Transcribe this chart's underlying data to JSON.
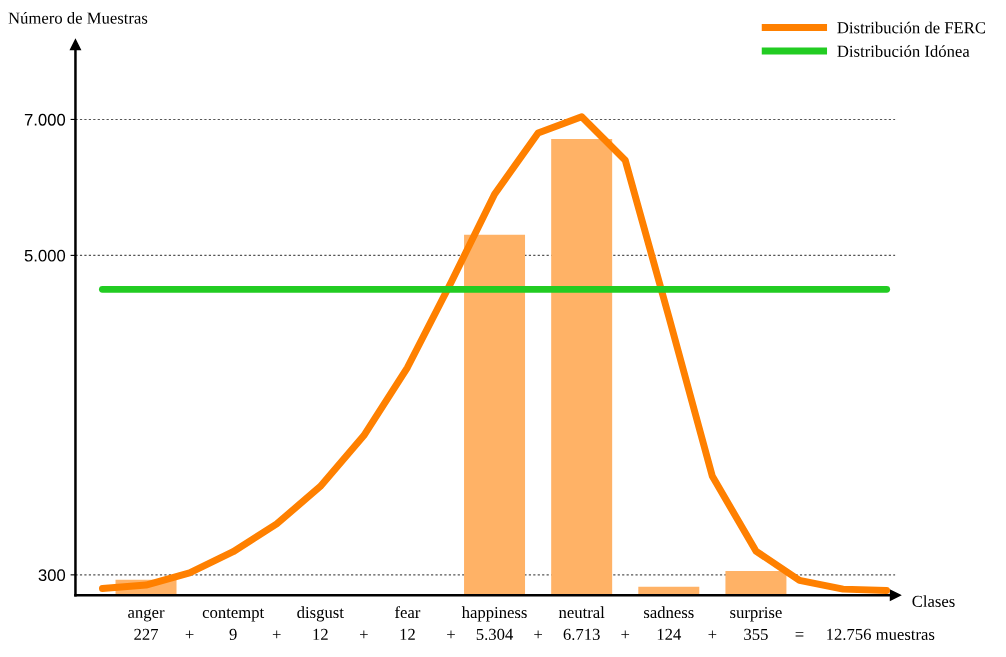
{
  "chart_data": {
    "type": "bar",
    "xlabel": "Clases",
    "ylabel": "Número de Muestras",
    "categories": [
      null,
      "anger",
      null,
      "contempt",
      null,
      "disgust",
      null,
      "fear",
      null,
      "happiness",
      null,
      "neutral",
      null,
      "sadness",
      null,
      "surprise",
      null,
      null,
      null
    ],
    "ylim": [
      0,
      8100
    ],
    "yticks": [
      {
        "value": 300,
        "label": "300"
      },
      {
        "value": 5000,
        "label": "5.000"
      },
      {
        "value": 7000,
        "label": "7.000"
      }
    ],
    "grid": "y",
    "legend": "top right",
    "series": [
      {
        "color": "#ffb266",
        "values": [
          null,
          227,
          null,
          9,
          null,
          12,
          null,
          12,
          null,
          5304,
          null,
          6713,
          null,
          124,
          null,
          355,
          null,
          null,
          null
        ],
        "value_labels": [
          null,
          "227",
          null,
          "9",
          null,
          "12",
          null,
          "12",
          null,
          "5.304",
          null,
          "6.713",
          null,
          "124",
          null,
          "355",
          null,
          null,
          null
        ]
      },
      {
        "type": "line",
        "name": "Distribución de FERC",
        "color": "#ff8000",
        "values": [
          100,
          150,
          330,
          640,
          1050,
          1600,
          2350,
          3350,
          4600,
          5900,
          6800,
          7040,
          6400,
          4100,
          1750,
          650,
          220,
          90,
          70
        ]
      },
      {
        "type": "line",
        "name": "Distribución Idónea",
        "color": "#22cc22",
        "values": [
          4500,
          4500,
          4500,
          4500,
          4500,
          4500,
          4500,
          4500,
          4500,
          4500,
          4500,
          4500,
          4500,
          4500,
          4500,
          4500,
          4500,
          4500,
          4500
        ]
      }
    ],
    "annotations": [
      "+",
      "+",
      "+",
      "+",
      "+",
      "+",
      "+",
      "=",
      "12.756 muestras"
    ]
  }
}
